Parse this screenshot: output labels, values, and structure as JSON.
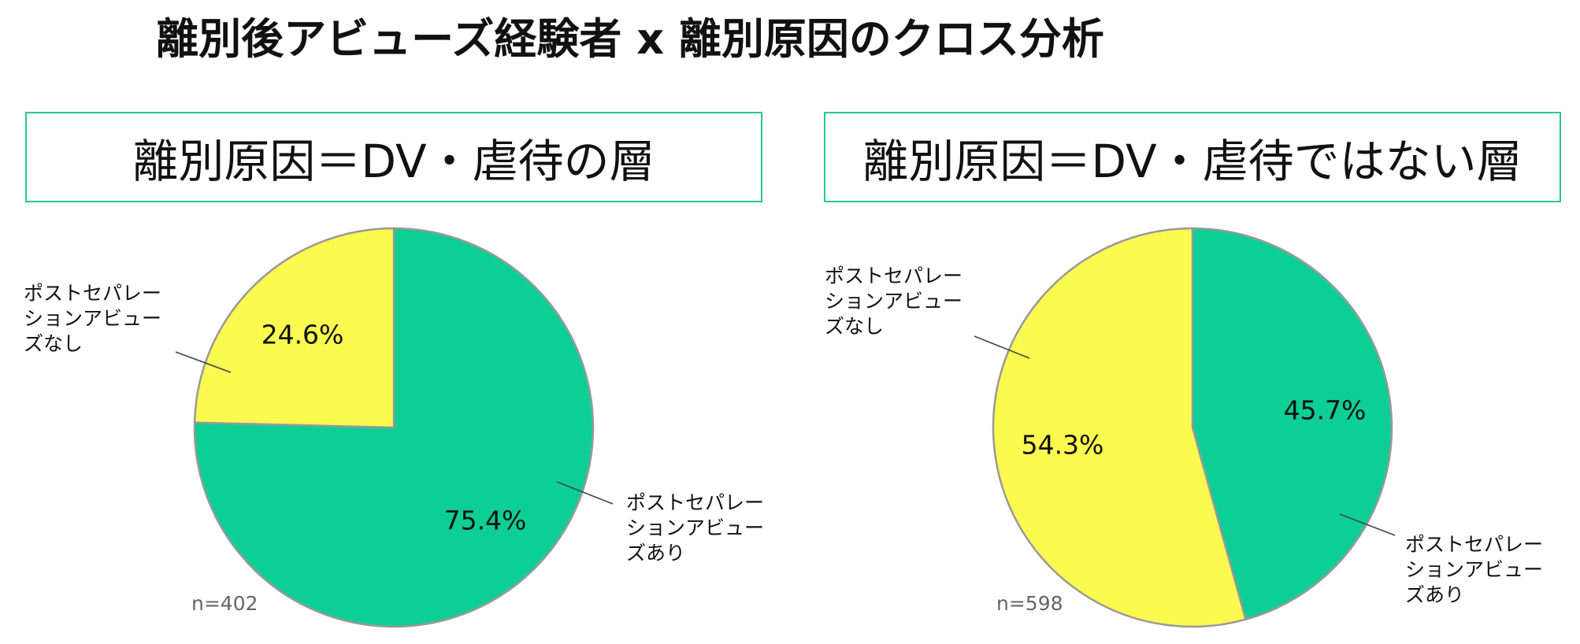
{
  "title": "離別後アビューズ経験者 x 離別原因のクロス分析",
  "colors": {
    "abuse_yes": "#0dcf95",
    "abuse_no": "#fafa50",
    "panel_border": "#22c993",
    "slice_stroke": "#999999"
  },
  "chart_data": [
    {
      "type": "pie",
      "title": "離別原因＝DV・虐待の層",
      "n_label": "n=402",
      "slices": [
        {
          "label": "ポストセパレーションアビューズあり",
          "value": 75.4,
          "value_label": "75.4%",
          "color": "#0dcf95"
        },
        {
          "label": "ポストセパレーションアビューズなし",
          "value": 24.6,
          "value_label": "24.6%",
          "color": "#fafa50"
        }
      ]
    },
    {
      "type": "pie",
      "title": "離別原因＝DV・虐待ではない層",
      "n_label": "n=598",
      "slices": [
        {
          "label": "ポストセパレーションアビューズあり",
          "value": 45.7,
          "value_label": "45.7%",
          "color": "#0dcf95"
        },
        {
          "label": "ポストセパレーションアビューズなし",
          "value": 54.3,
          "value_label": "54.3%",
          "color": "#fafa50"
        }
      ]
    }
  ]
}
